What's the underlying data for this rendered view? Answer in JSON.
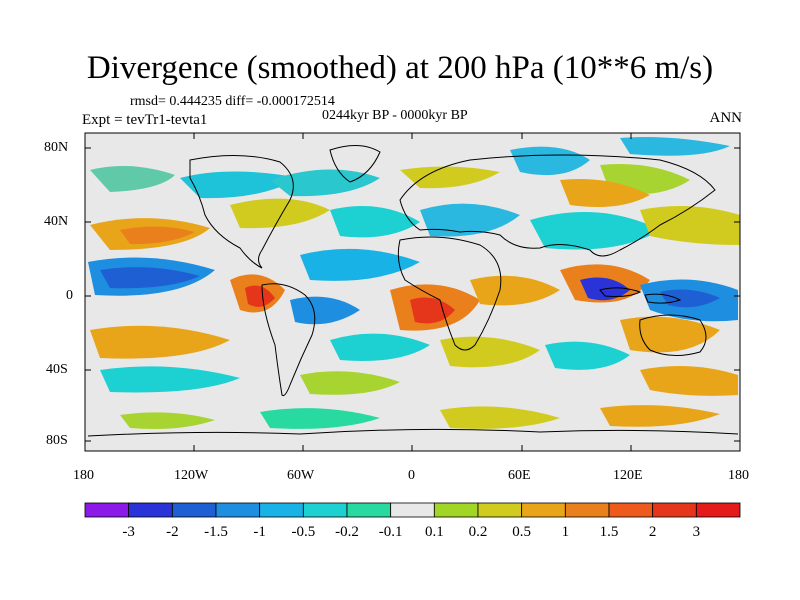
{
  "title": "Divergence (smoothed) at 200 hPa (10**6 m/s)",
  "stats": "rmsd= 0.444235 diff= -0.000172514",
  "period": "0244kyr BP - 0000kyr BP",
  "experiment": "Expt = tevTr1-tevta1",
  "season": "ANN",
  "axes": {
    "y_ticks": [
      "80N",
      "40N",
      "0",
      "40S",
      "80S"
    ],
    "x_ticks": [
      "180",
      "120W",
      "60W",
      "0",
      "60E",
      "120E",
      "180"
    ]
  },
  "colorbar": {
    "labels": [
      "-3",
      "-2",
      "-1.5",
      "-1",
      "-0.5",
      "-0.2",
      "-0.1",
      "0.1",
      "0.2",
      "0.5",
      "1",
      "1.5",
      "2",
      "3"
    ],
    "colors": [
      "#8b1ae8",
      "#2a33d8",
      "#1f5fd4",
      "#1e8ee0",
      "#19b2e6",
      "#1dd0d2",
      "#28d9a0",
      "#e8e8e8",
      "#a2d626",
      "#d2cb1f",
      "#e8a51a",
      "#ea801b",
      "#ee5a1c",
      "#e5361c",
      "#e51b1b"
    ]
  }
}
